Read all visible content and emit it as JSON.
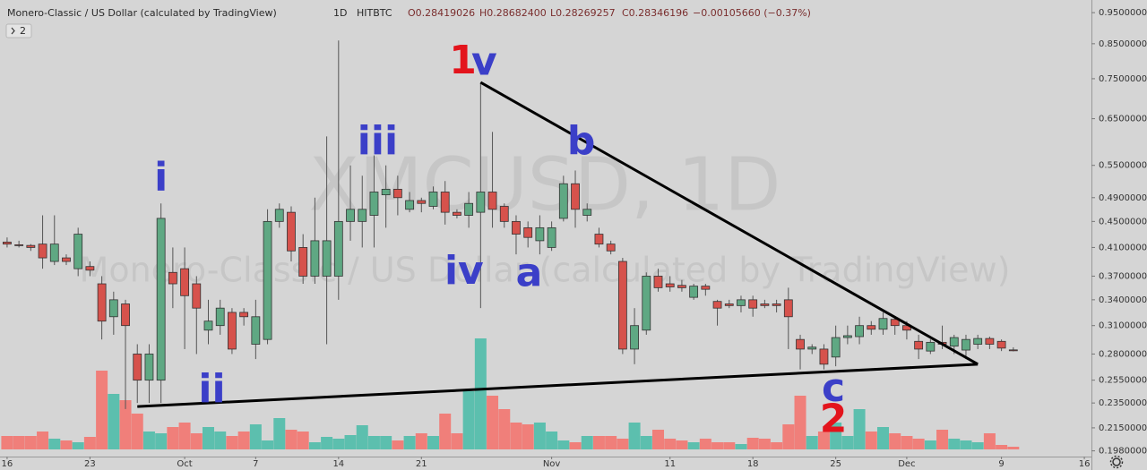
{
  "chart_data": {
    "type": "candlestick",
    "title": "Monero-Classic / US Dollar (calculated by TradingView)",
    "interval": "1D",
    "exchange": "HITBTC",
    "legend_values": [
      "O0.28419026",
      "H0.28682400",
      "L0.28269257",
      "C0.28346196",
      "−0.00105660 (−0.37%)"
    ],
    "indicator_count": 2,
    "watermark": "XMCUSD, 1D",
    "log_scale": true,
    "grid": false,
    "up_color": "#5fa883",
    "down_color": "#d6524c",
    "volume_up_color": "#5cbfae",
    "volume_down_color": "#f07f7a",
    "open": [
      0.418,
      0.414,
      0.413,
      0.415,
      0.39,
      0.395,
      0.38,
      0.383,
      0.36,
      0.32,
      0.335,
      0.28,
      0.255,
      0.255,
      0.375,
      0.38,
      0.36,
      0.305,
      0.31,
      0.325,
      0.325,
      0.29,
      0.295,
      0.45,
      0.465,
      0.41,
      0.37,
      0.37,
      0.37,
      0.45,
      0.45,
      0.46,
      0.495,
      0.505,
      0.47,
      0.485,
      0.475,
      0.5,
      0.465,
      0.46,
      0.465,
      0.5,
      0.475,
      0.45,
      0.44,
      0.42,
      0.41,
      0.455,
      0.515,
      0.46,
      0.43,
      0.415,
      0.39,
      0.285,
      0.305,
      0.37,
      0.36,
      0.358,
      0.343,
      0.357,
      0.338,
      0.335,
      0.333,
      0.34,
      0.335,
      0.335,
      0.34,
      0.295,
      0.285,
      0.285,
      0.277,
      0.297,
      0.298,
      0.31,
      0.306,
      0.317,
      0.31,
      0.293,
      0.283,
      0.292,
      0.288,
      0.284,
      0.29,
      0.296,
      0.293,
      0.28419026
    ],
    "high": [
      0.425,
      0.42,
      0.415,
      0.46,
      0.46,
      0.4,
      0.44,
      0.39,
      0.37,
      0.35,
      0.34,
      0.29,
      0.29,
      0.48,
      0.41,
      0.41,
      0.37,
      0.34,
      0.34,
      0.33,
      0.33,
      0.34,
      0.47,
      0.48,
      0.475,
      0.43,
      0.49,
      0.61,
      0.86,
      0.55,
      0.53,
      0.57,
      0.55,
      0.53,
      0.5,
      0.49,
      0.51,
      0.52,
      0.47,
      0.5,
      0.74,
      0.62,
      0.48,
      0.46,
      0.45,
      0.46,
      0.45,
      0.53,
      0.54,
      0.48,
      0.44,
      0.42,
      0.395,
      0.33,
      0.375,
      0.38,
      0.37,
      0.365,
      0.36,
      0.36,
      0.34,
      0.34,
      0.345,
      0.345,
      0.34,
      0.34,
      0.355,
      0.3,
      0.29,
      0.29,
      0.31,
      0.31,
      0.32,
      0.315,
      0.325,
      0.32,
      0.315,
      0.3,
      0.295,
      0.31,
      0.3,
      0.3,
      0.3,
      0.298,
      0.295,
      0.286824
    ],
    "low": [
      0.41,
      0.41,
      0.405,
      0.38,
      0.385,
      0.385,
      0.37,
      0.37,
      0.295,
      0.3,
      0.23,
      0.235,
      0.235,
      0.235,
      0.33,
      0.285,
      0.28,
      0.29,
      0.3,
      0.28,
      0.31,
      0.275,
      0.29,
      0.44,
      0.39,
      0.36,
      0.36,
      0.29,
      0.34,
      0.42,
      0.41,
      0.41,
      0.44,
      0.46,
      0.465,
      0.465,
      0.47,
      0.445,
      0.455,
      0.44,
      0.33,
      0.44,
      0.44,
      0.4,
      0.41,
      0.4,
      0.405,
      0.45,
      0.44,
      0.45,
      0.41,
      0.4,
      0.28,
      0.27,
      0.3,
      0.35,
      0.35,
      0.35,
      0.34,
      0.345,
      0.31,
      0.33,
      0.325,
      0.32,
      0.33,
      0.325,
      0.285,
      0.265,
      0.28,
      0.265,
      0.268,
      0.29,
      0.29,
      0.3,
      0.3,
      0.3,
      0.295,
      0.275,
      0.28,
      0.285,
      0.28,
      0.275,
      0.285,
      0.285,
      0.283,
      0.28269257
    ],
    "close": [
      0.415,
      0.413,
      0.41,
      0.395,
      0.415,
      0.39,
      0.43,
      0.378,
      0.315,
      0.34,
      0.31,
      0.255,
      0.28,
      0.455,
      0.36,
      0.345,
      0.33,
      0.315,
      0.33,
      0.285,
      0.32,
      0.32,
      0.45,
      0.47,
      0.405,
      0.37,
      0.42,
      0.42,
      0.45,
      0.47,
      0.47,
      0.5,
      0.505,
      0.49,
      0.485,
      0.48,
      0.5,
      0.465,
      0.46,
      0.48,
      0.5,
      0.47,
      0.45,
      0.43,
      0.425,
      0.44,
      0.44,
      0.515,
      0.47,
      0.47,
      0.415,
      0.405,
      0.285,
      0.31,
      0.37,
      0.355,
      0.356,
      0.355,
      0.357,
      0.353,
      0.33,
      0.333,
      0.34,
      0.33,
      0.333,
      0.333,
      0.32,
      0.285,
      0.287,
      0.27,
      0.297,
      0.299,
      0.31,
      0.306,
      0.318,
      0.31,
      0.305,
      0.285,
      0.292,
      0.29,
      0.297,
      0.295,
      0.296,
      0.29,
      0.286,
      0.28346196
    ],
    "volume": [
      15,
      15,
      15,
      20,
      12,
      10,
      8,
      14,
      88,
      62,
      55,
      40,
      20,
      18,
      25,
      30,
      18,
      25,
      20,
      15,
      20,
      28,
      10,
      35,
      22,
      20,
      8,
      14,
      12,
      16,
      27,
      15,
      15,
      10,
      15,
      18,
      15,
      40,
      18,
      65,
      124,
      60,
      45,
      30,
      28,
      30,
      20,
      10,
      8,
      15,
      15,
      15,
      12,
      30,
      15,
      22,
      12,
      10,
      8,
      12,
      8,
      8,
      6,
      13,
      12,
      8,
      28,
      60,
      15,
      20,
      30,
      15,
      45,
      20,
      25,
      18,
      15,
      12,
      10,
      22,
      12,
      10,
      8,
      18,
      5,
      3
    ],
    "vlim": [
      0,
      130
    ],
    "xlim": [
      -0.6,
      91.6
    ],
    "xticks": [
      {
        "value": 0,
        "label": "16"
      },
      {
        "value": 7,
        "label": "23"
      },
      {
        "value": 15,
        "label": "Oct"
      },
      {
        "value": 21,
        "label": "7"
      },
      {
        "value": 28,
        "label": "14"
      },
      {
        "value": 35,
        "label": "21"
      },
      {
        "value": 46,
        "label": "Nov"
      },
      {
        "value": 56,
        "label": "11"
      },
      {
        "value": 63,
        "label": "18"
      },
      {
        "value": 70,
        "label": "25"
      },
      {
        "value": 76,
        "label": "Dec"
      },
      {
        "value": 84,
        "label": "9"
      },
      {
        "value": 91,
        "label": "16"
      }
    ],
    "ylim": [
      0.194,
      0.994
    ],
    "yticks": [
      {
        "value": 0.95,
        "label": "0.95000000"
      },
      {
        "value": 0.85,
        "label": "0.85000000"
      },
      {
        "value": 0.75,
        "label": "0.75000000"
      },
      {
        "value": 0.65,
        "label": "0.65000000"
      },
      {
        "value": 0.55,
        "label": "0.55000000"
      },
      {
        "value": 0.49,
        "label": "0.49000000"
      },
      {
        "value": 0.45,
        "label": "0.45000000"
      },
      {
        "value": 0.41,
        "label": "0.41000000"
      },
      {
        "value": 0.37,
        "label": "0.37000000"
      },
      {
        "value": 0.34,
        "label": "0.34000000"
      },
      {
        "value": 0.31,
        "label": "0.31000000"
      },
      {
        "value": 0.28,
        "label": "0.28000000"
      },
      {
        "value": 0.255,
        "label": "0.25500000"
      },
      {
        "value": 0.235,
        "label": "0.23500000"
      },
      {
        "value": 0.215,
        "label": "0.21500000"
      },
      {
        "value": 0.198,
        "label": "0.19800000"
      }
    ],
    "trendline_color": "#000000",
    "trendlines": [
      [
        [
          40,
          0.74
        ],
        [
          82,
          0.27
        ]
      ],
      [
        [
          11,
          0.232
        ],
        [
          82,
          0.27
        ]
      ]
    ],
    "annotations": [
      {
        "text": "1",
        "color": "#e3141c",
        "x": 38.5,
        "y": 0.794
      },
      {
        "text": "v",
        "color": "#3b3fc8",
        "x": 40.3,
        "y": 0.79
      },
      {
        "text": "i",
        "color": "#3b3fc8",
        "x": 13.0,
        "y": 0.523
      },
      {
        "text": "ii",
        "color": "#3b3fc8",
        "x": 17.3,
        "y": 0.245
      },
      {
        "text": "iii",
        "color": "#3b3fc8",
        "x": 31.3,
        "y": 0.595
      },
      {
        "text": "iv",
        "color": "#3b3fc8",
        "x": 38.6,
        "y": 0.374
      },
      {
        "text": "a",
        "color": "#3b3fc8",
        "x": 44.1,
        "y": 0.371
      },
      {
        "text": "b",
        "color": "#3b3fc8",
        "x": 48.5,
        "y": 0.595
      },
      {
        "text": "c",
        "color": "#3b3fc8",
        "x": 69.8,
        "y": 0.246
      },
      {
        "text": "2",
        "color": "#e3141c",
        "x": 69.8,
        "y": 0.22
      }
    ]
  }
}
